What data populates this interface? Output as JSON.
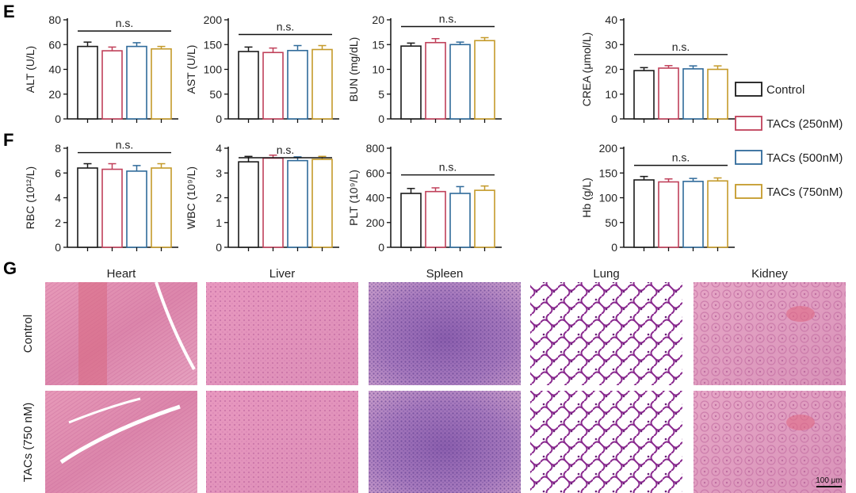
{
  "panels": {
    "E": "E",
    "F": "F",
    "G": "G"
  },
  "legend": {
    "entries": [
      "Control",
      "TACs (250nM)",
      "TACs (500nM)",
      "TACs (750nM)"
    ],
    "colors": [
      "#1a1a1a",
      "#c0405a",
      "#2f6a9a",
      "#c49a2a"
    ]
  },
  "chart_data": [
    {
      "type": "bar",
      "ylabel": "ALT (U/L)",
      "ylim": [
        0,
        80
      ],
      "ticks": [
        0,
        20,
        40,
        60,
        80
      ],
      "annotation": "n.s.",
      "series": [
        {
          "name": "Control",
          "values": [
            58.5
          ],
          "error": [
            3.5
          ]
        },
        {
          "name": "TACs (250nM)",
          "values": [
            55
          ],
          "error": [
            3
          ]
        },
        {
          "name": "TACs (500nM)",
          "values": [
            58.5
          ],
          "error": [
            3
          ]
        },
        {
          "name": "TACs (750nM)",
          "values": [
            56.5
          ],
          "error": [
            2
          ]
        }
      ]
    },
    {
      "type": "bar",
      "ylabel": "AST (U/L)",
      "ylim": [
        0,
        200
      ],
      "ticks": [
        0,
        50,
        100,
        150,
        200
      ],
      "annotation": "n.s.",
      "series": [
        {
          "name": "Control",
          "values": [
            136
          ],
          "error": [
            9
          ]
        },
        {
          "name": "TACs (250nM)",
          "values": [
            134
          ],
          "error": [
            9
          ]
        },
        {
          "name": "TACs (500nM)",
          "values": [
            138
          ],
          "error": [
            10
          ]
        },
        {
          "name": "TACs (750nM)",
          "values": [
            140
          ],
          "error": [
            8
          ]
        }
      ]
    },
    {
      "type": "bar",
      "ylabel": "BUN (mg/dL)",
      "ylim": [
        0,
        20
      ],
      "ticks": [
        0,
        5,
        10,
        15,
        20
      ],
      "annotation": "n.s.",
      "series": [
        {
          "name": "Control",
          "values": [
            14.7
          ],
          "error": [
            0.6
          ]
        },
        {
          "name": "TACs (250nM)",
          "values": [
            15.4
          ],
          "error": [
            0.8
          ]
        },
        {
          "name": "TACs (500nM)",
          "values": [
            15
          ],
          "error": [
            0.5
          ]
        },
        {
          "name": "TACs (750nM)",
          "values": [
            15.8
          ],
          "error": [
            0.6
          ]
        }
      ]
    },
    {
      "type": "bar",
      "ylabel": "CREA (μmol/L)",
      "ylim": [
        0,
        40
      ],
      "ticks": [
        0,
        10,
        20,
        30,
        40
      ],
      "annotation": "n.s.",
      "series": [
        {
          "name": "Control",
          "values": [
            19.5
          ],
          "error": [
            1.2
          ]
        },
        {
          "name": "TACs (250nM)",
          "values": [
            20.5
          ],
          "error": [
            1
          ]
        },
        {
          "name": "TACs (500nM)",
          "values": [
            20.2
          ],
          "error": [
            1.2
          ]
        },
        {
          "name": "TACs (750nM)",
          "values": [
            20
          ],
          "error": [
            1.4
          ]
        }
      ]
    },
    {
      "type": "bar",
      "ylabel": "RBC (10¹²/L)",
      "ylim": [
        0,
        8
      ],
      "ticks": [
        0,
        2,
        4,
        6,
        8
      ],
      "annotation": "n.s.",
      "series": [
        {
          "name": "Control",
          "values": [
            6.4
          ],
          "error": [
            0.35
          ]
        },
        {
          "name": "TACs (250nM)",
          "values": [
            6.3
          ],
          "error": [
            0.45
          ]
        },
        {
          "name": "TACs (500nM)",
          "values": [
            6.15
          ],
          "error": [
            0.45
          ]
        },
        {
          "name": "TACs (750nM)",
          "values": [
            6.4
          ],
          "error": [
            0.35
          ]
        }
      ]
    },
    {
      "type": "bar",
      "ylabel": "WBC (10⁹/L)",
      "ylim": [
        0,
        4
      ],
      "ticks": [
        0,
        1,
        2,
        3,
        4
      ],
      "annotation": "n.s.",
      "series": [
        {
          "name": "Control",
          "values": [
            3.45
          ],
          "error": [
            0.22
          ]
        },
        {
          "name": "TACs (250nM)",
          "values": [
            3.6
          ],
          "error": [
            0.12
          ]
        },
        {
          "name": "TACs (500nM)",
          "values": [
            3.5
          ],
          "error": [
            0.15
          ]
        },
        {
          "name": "TACs (750nM)",
          "values": [
            3.55
          ],
          "error": [
            0.12
          ]
        }
      ]
    },
    {
      "type": "bar",
      "ylabel": "PLT (10⁹/L)",
      "ylim": [
        0,
        800
      ],
      "ticks": [
        0,
        200,
        400,
        600,
        800
      ],
      "annotation": "n.s.",
      "series": [
        {
          "name": "Control",
          "values": [
            435
          ],
          "error": [
            40
          ]
        },
        {
          "name": "TACs (250nM)",
          "values": [
            450
          ],
          "error": [
            30
          ]
        },
        {
          "name": "TACs (500nM)",
          "values": [
            435
          ],
          "error": [
            55
          ]
        },
        {
          "name": "TACs (750nM)",
          "values": [
            460
          ],
          "error": [
            35
          ]
        }
      ]
    },
    {
      "type": "bar",
      "ylabel": "Hb (g/L)",
      "ylim": [
        0,
        200
      ],
      "ticks": [
        0,
        50,
        100,
        150,
        200
      ],
      "annotation": "n.s.",
      "series": [
        {
          "name": "Control",
          "values": [
            136
          ],
          "error": [
            7
          ]
        },
        {
          "name": "TACs (250nM)",
          "values": [
            132
          ],
          "error": [
            6
          ]
        },
        {
          "name": "TACs (500nM)",
          "values": [
            133
          ],
          "error": [
            6
          ]
        },
        {
          "name": "TACs (750nM)",
          "values": [
            134
          ],
          "error": [
            6
          ]
        }
      ]
    }
  ],
  "histology": {
    "organs": [
      "Heart",
      "Liver",
      "Spleen",
      "Lung",
      "Kidney"
    ],
    "rows": [
      "Control",
      "TACs (750 nM)"
    ],
    "scale_bar": "100 μm"
  }
}
